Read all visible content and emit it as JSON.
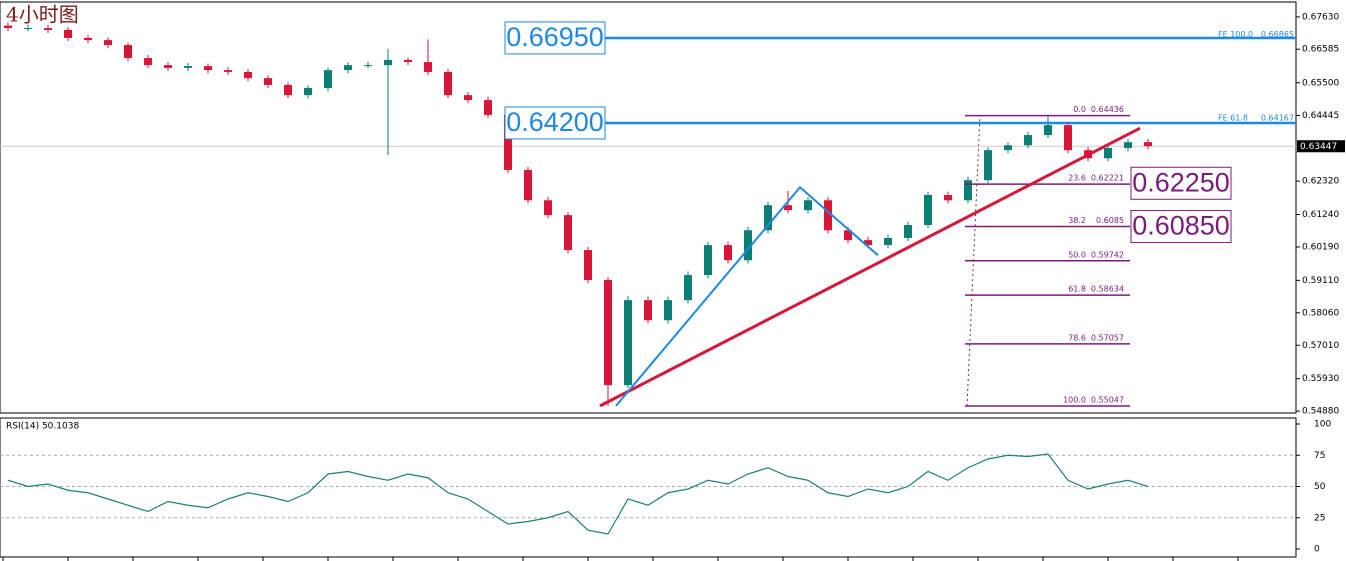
{
  "title": "4小时图",
  "chart_data": [
    {
      "type": "candlestick",
      "open": [
        0.6735,
        0.6727,
        0.6727,
        0.6721,
        0.6695,
        0.6688,
        0.6672,
        0.663,
        0.6607,
        0.6598,
        0.6604,
        0.6591,
        0.6585,
        0.6565,
        0.6543,
        0.651,
        0.6533,
        0.6591,
        0.6607,
        0.6607,
        0.6624,
        0.6617,
        0.6585,
        0.651,
        0.6494,
        0.6446,
        0.6268,
        0.617,
        0.6122,
        0.6009,
        0.5912,
        0.5572,
        0.5847,
        0.5782,
        0.5847,
        0.5928,
        0.6025,
        0.5976,
        0.6073,
        0.6154,
        0.6138,
        0.617,
        0.6073,
        0.6041,
        0.6025,
        0.6048,
        0.609,
        0.6187,
        0.617,
        0.6235,
        0.6332,
        0.6348,
        0.6381,
        0.6413,
        0.6332,
        0.6306,
        0.6339,
        0.6358
      ],
      "high": [
        0.6745,
        0.6738,
        0.6737,
        0.673,
        0.6704,
        0.6697,
        0.668,
        0.664,
        0.6617,
        0.6614,
        0.6612,
        0.66,
        0.6594,
        0.6574,
        0.6552,
        0.6541,
        0.66,
        0.6616,
        0.6618,
        0.666,
        0.663,
        0.669,
        0.6595,
        0.652,
        0.6505,
        0.6456,
        0.6278,
        0.618,
        0.6132,
        0.6019,
        0.5922,
        0.586,
        0.5858,
        0.5858,
        0.594,
        0.6036,
        0.6036,
        0.6084,
        0.6165,
        0.62,
        0.618,
        0.618,
        0.6084,
        0.6052,
        0.6058,
        0.61,
        0.6198,
        0.6198,
        0.6246,
        0.6342,
        0.6358,
        0.6392,
        0.6444,
        0.6424,
        0.6342,
        0.635,
        0.6368,
        0.6368
      ],
      "low": [
        0.6717,
        0.6717,
        0.6711,
        0.6685,
        0.6678,
        0.6662,
        0.662,
        0.6597,
        0.6588,
        0.6588,
        0.6581,
        0.6575,
        0.6555,
        0.6533,
        0.65,
        0.65,
        0.6523,
        0.6581,
        0.6597,
        0.6316,
        0.6607,
        0.6575,
        0.65,
        0.6484,
        0.6436,
        0.6258,
        0.616,
        0.6112,
        0.5999,
        0.5902,
        0.5505,
        0.5562,
        0.5772,
        0.5772,
        0.5837,
        0.5918,
        0.5966,
        0.5966,
        0.6063,
        0.6128,
        0.6128,
        0.6063,
        0.6031,
        0.6015,
        0.6015,
        0.6038,
        0.608,
        0.616,
        0.616,
        0.6225,
        0.6322,
        0.6338,
        0.6371,
        0.6322,
        0.6296,
        0.6296,
        0.6329,
        0.6335
      ],
      "close": [
        0.6727,
        0.6727,
        0.6721,
        0.6695,
        0.6688,
        0.6672,
        0.663,
        0.6607,
        0.6598,
        0.6604,
        0.6591,
        0.6585,
        0.6565,
        0.6543,
        0.651,
        0.6533,
        0.6591,
        0.6607,
        0.6607,
        0.6624,
        0.6617,
        0.6585,
        0.651,
        0.6494,
        0.6446,
        0.6268,
        0.617,
        0.6122,
        0.6009,
        0.5912,
        0.5572,
        0.5847,
        0.5782,
        0.5847,
        0.5928,
        0.6025,
        0.5976,
        0.6073,
        0.6154,
        0.6138,
        0.617,
        0.6073,
        0.6041,
        0.6025,
        0.6048,
        0.609,
        0.6187,
        0.617,
        0.6235,
        0.6332,
        0.6348,
        0.6381,
        0.6413,
        0.6332,
        0.6306,
        0.6339,
        0.6358,
        0.6345
      ],
      "up_color": "#0b7f74",
      "down_color": "#d8163a",
      "ylim": [
        0.5482,
        0.6808
      ],
      "yticks": [
        {
          "value": 0.6763,
          "label": "0.67630"
        },
        0.66585,
        {
          "value": 0.655,
          "label": "0.65500"
        },
        0.64445,
        {
          "value": 0.6232,
          "label": "0.62320"
        },
        {
          "value": 0.6124,
          "label": "0.61240"
        },
        {
          "value": 0.6019,
          "label": "0.60190"
        },
        {
          "value": 0.5911,
          "label": "0.59110"
        },
        {
          "value": 0.5806,
          "label": "0.58060"
        },
        {
          "value": 0.5701,
          "label": "0.57010"
        },
        {
          "value": 0.5593,
          "label": "0.55930"
        },
        {
          "value": 0.5488,
          "label": "0.54880"
        }
      ],
      "last_price": 0.63447,
      "levels": [
        {
          "value": 0.6695,
          "label": "0.66950",
          "color": "#1e88e5",
          "line": true
        },
        {
          "value": 0.642,
          "label": "0.64200",
          "color": "#1e88e5",
          "line": true
        },
        {
          "value": 0.6225,
          "label": "0.62250",
          "color": "#7b1c7b",
          "line": false
        },
        {
          "value": 0.6085,
          "label": "0.60850",
          "color": "#7b1c7b",
          "line": false
        }
      ],
      "fe_labels": [
        {
          "name": "FE 100.0",
          "value": 0.66865
        },
        {
          "name": "FE 61.8",
          "value": 0.64167
        }
      ],
      "fibonacci": {
        "color": "#7b1c7b",
        "ratios": [
          "0.0",
          "23.6",
          "38.2",
          "50.0",
          "61.8",
          "78.6",
          "100.0"
        ],
        "values": [
          0.64436,
          0.62221,
          0.6085,
          0.59742,
          0.58634,
          0.57057,
          0.55047
        ]
      },
      "trendline": {
        "color": "#d8163a",
        "values": [
          0.5505,
          0.6403
        ]
      },
      "fe_path": {
        "color": "#1e88e5",
        "values": [
          0.5505,
          0.6212,
          0.5992
        ]
      }
    },
    {
      "type": "line",
      "label": "RSI(14) 50.1038",
      "series": [
        {
          "name": "RSI(14)",
          "color": "#1f7f7a",
          "values": [
            55,
            50,
            52,
            47,
            45,
            40,
            35,
            30,
            38,
            35,
            33,
            40,
            45,
            42,
            38,
            45,
            60,
            62,
            58,
            55,
            60,
            57,
            45,
            40,
            30,
            20,
            22,
            25,
            30,
            15,
            12,
            40,
            35,
            45,
            48,
            55,
            52,
            60,
            65,
            58,
            55,
            45,
            42,
            48,
            45,
            50,
            62,
            55,
            65,
            72,
            75,
            74,
            76,
            55,
            48,
            52,
            55,
            50
          ]
        }
      ],
      "ylim": [
        0,
        100
      ],
      "yticks": [
        100,
        75,
        50,
        25,
        0
      ],
      "levels": [
        75,
        50,
        25
      ]
    }
  ]
}
